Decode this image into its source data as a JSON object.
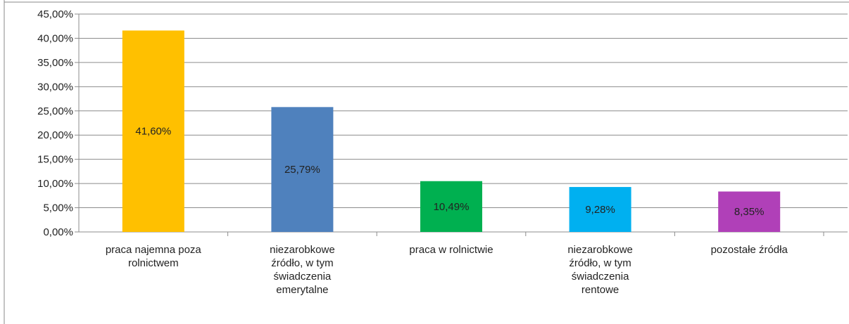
{
  "chart_data": {
    "type": "bar",
    "categories": [
      [
        "praca najemna poza",
        "rolnictwem"
      ],
      [
        "niezarobkowe",
        "źródło, w tym",
        "świadczenia",
        "emerytalne"
      ],
      [
        "praca w rolnictwie"
      ],
      [
        "niezarobkowe",
        "źródło, w tym",
        "świadczenia",
        "rentowe"
      ],
      [
        "pozostałe źródła"
      ]
    ],
    "values": [
      41.6,
      25.79,
      10.49,
      9.28,
      8.35
    ],
    "data_labels": [
      "41,60%",
      "25,79%",
      "10,49%",
      "9,28%",
      "8,35%"
    ],
    "colors": [
      "#FFC000",
      "#4F81BD",
      "#00B050",
      "#00B0F0",
      "#B040B8"
    ],
    "title": "",
    "xlabel": "",
    "ylabel": "",
    "ylim": [
      0,
      45
    ],
    "yticks": [
      0,
      5,
      10,
      15,
      20,
      25,
      30,
      35,
      40,
      45
    ],
    "ytick_labels": [
      "0,00%",
      "5,00%",
      "10,00%",
      "15,00%",
      "20,00%",
      "25,00%",
      "30,00%",
      "35,00%",
      "40,00%",
      "45,00%"
    ],
    "grid": true,
    "legend": "none"
  }
}
